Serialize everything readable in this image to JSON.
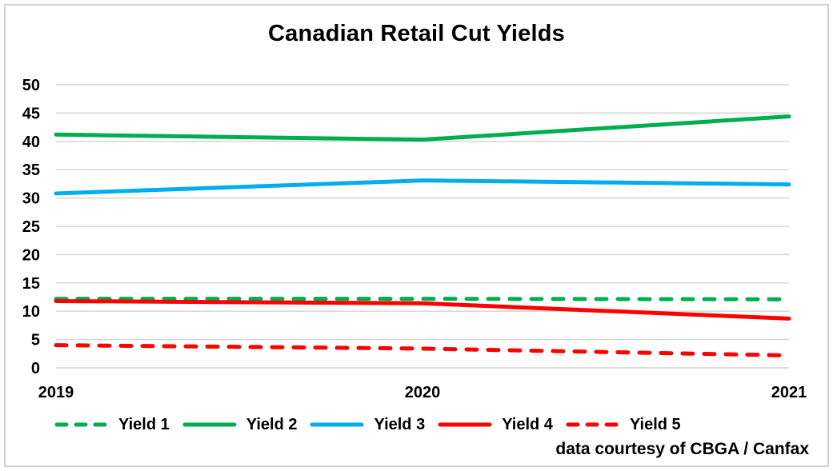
{
  "title": "Canadian Retail Cut Yields",
  "note": "data courtesy of CBGA / Canfax",
  "colors": {
    "green": "#00AE50",
    "blue": "#00AEEF",
    "red": "#FF0000",
    "gridline": "#D9D9D9",
    "text": "#000000",
    "frame_border": "#D3D3D3"
  },
  "chart_data": {
    "type": "line",
    "title": "Canadian Retail Cut Yields",
    "x": [
      "2019",
      "2020",
      "2021"
    ],
    "series": [
      {
        "name": "Yield 1",
        "color": "#00AE50",
        "style": "dashed",
        "values": [
          12.2,
          12.2,
          12.1
        ]
      },
      {
        "name": "Yield 2",
        "color": "#00AE50",
        "style": "solid",
        "values": [
          41.2,
          40.3,
          44.4
        ]
      },
      {
        "name": "Yield 3",
        "color": "#00AEEF",
        "style": "solid",
        "values": [
          30.8,
          33.1,
          32.4
        ]
      },
      {
        "name": "Yield 4",
        "color": "#FF0000",
        "style": "solid",
        "values": [
          11.8,
          11.4,
          8.7
        ]
      },
      {
        "name": "Yield 5",
        "color": "#FF0000",
        "style": "dashed",
        "values": [
          4.0,
          3.4,
          2.2
        ]
      }
    ],
    "xlabel": "",
    "ylabel": "",
    "ylim": [
      0,
      50
    ],
    "yticks": [
      0,
      5,
      10,
      15,
      20,
      25,
      30,
      35,
      40,
      45,
      50
    ],
    "grid": true,
    "legend_position": "bottom",
    "annotation": "data courtesy of CBGA / Canfax"
  }
}
